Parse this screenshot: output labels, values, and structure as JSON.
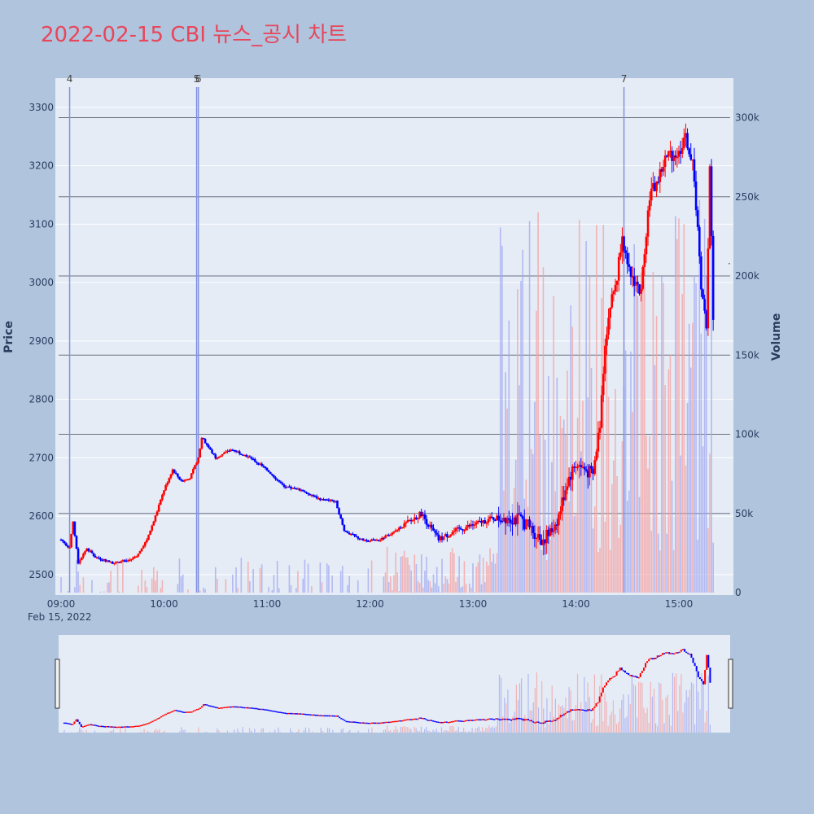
{
  "title": "2022-02-15 CBI 뉴스_공시 차트",
  "chart_data": {
    "type": "candlestick",
    "title": "2022-02-15 CBI 뉴스_공시 차트",
    "ylabel": "Price",
    "y2label": "Volume",
    "date_label": "Feb 15, 2022",
    "price_range": [
      2465,
      3350
    ],
    "volume_range": [
      0,
      325000
    ],
    "price_ticks": [
      2500,
      2600,
      2700,
      2800,
      2900,
      3000,
      3100,
      3200,
      3300
    ],
    "volume_ticks": [
      {
        "value": 0,
        "label": "0"
      },
      {
        "value": 50000,
        "label": "50k"
      },
      {
        "value": 100000,
        "label": "100k"
      },
      {
        "value": 150000,
        "label": "150k"
      },
      {
        "value": 200000,
        "label": "200k"
      },
      {
        "value": 250000,
        "label": "250k"
      },
      {
        "value": 300000,
        "label": "300k"
      }
    ],
    "time_ticks": [
      "09:00",
      "10:00",
      "11:00",
      "12:00",
      "13:00",
      "14:00",
      "15:00"
    ],
    "x_range": [
      "09:00",
      "15:30"
    ],
    "colors": {
      "up": "#ff0000",
      "down": "#0000ff",
      "annotation_line": "#8090e0",
      "hline": "#6b7080"
    },
    "news_markers": [
      {
        "label": "4",
        "time": "09:05"
      },
      {
        "label": "5",
        "time": "10:19"
      },
      {
        "label": "6",
        "time": "10:20"
      },
      {
        "label": "7",
        "time": "14:28"
      }
    ],
    "volume_gridlines": [
      50000,
      100000,
      150000,
      200000,
      250000,
      300000
    ],
    "price_keypoints": [
      [
        "09:00",
        2560
      ],
      [
        "09:05",
        2545
      ],
      [
        "09:07",
        2590
      ],
      [
        "09:10",
        2520
      ],
      [
        "09:15",
        2545
      ],
      [
        "09:20",
        2530
      ],
      [
        "09:30",
        2520
      ],
      [
        "09:40",
        2525
      ],
      [
        "09:45",
        2535
      ],
      [
        "09:50",
        2560
      ],
      [
        "09:55",
        2600
      ],
      [
        "10:00",
        2645
      ],
      [
        "10:05",
        2680
      ],
      [
        "10:10",
        2660
      ],
      [
        "10:15",
        2665
      ],
      [
        "10:20",
        2700
      ],
      [
        "10:22",
        2735
      ],
      [
        "10:30",
        2700
      ],
      [
        "10:40",
        2715
      ],
      [
        "10:50",
        2700
      ],
      [
        "11:00",
        2680
      ],
      [
        "11:10",
        2650
      ],
      [
        "11:20",
        2645
      ],
      [
        "11:30",
        2630
      ],
      [
        "11:40",
        2625
      ],
      [
        "11:45",
        2575
      ],
      [
        "11:55",
        2560
      ],
      [
        "12:05",
        2558
      ],
      [
        "12:15",
        2575
      ],
      [
        "12:25",
        2595
      ],
      [
        "12:30",
        2605
      ],
      [
        "12:33",
        2590
      ],
      [
        "12:40",
        2560
      ],
      [
        "12:50",
        2575
      ],
      [
        "13:00",
        2585
      ],
      [
        "13:10",
        2595
      ],
      [
        "13:20",
        2600
      ],
      [
        "13:30",
        2590
      ],
      [
        "13:35",
        2575
      ],
      [
        "13:40",
        2560
      ],
      [
        "13:45",
        2570
      ],
      [
        "13:50",
        2600
      ],
      [
        "13:55",
        2660
      ],
      [
        "14:00",
        2690
      ],
      [
        "14:05",
        2680
      ],
      [
        "14:10",
        2670
      ],
      [
        "14:14",
        2760
      ],
      [
        "14:17",
        2900
      ],
      [
        "14:20",
        2960
      ],
      [
        "14:24",
        3010
      ],
      [
        "14:27",
        3090
      ],
      [
        "14:30",
        3020
      ],
      [
        "14:35",
        3000
      ],
      [
        "14:38",
        2980
      ],
      [
        "14:40",
        3060
      ],
      [
        "14:43",
        3150
      ],
      [
        "14:47",
        3170
      ],
      [
        "14:52",
        3210
      ],
      [
        "14:55",
        3220
      ],
      [
        "15:00",
        3220
      ],
      [
        "15:03",
        3250
      ],
      [
        "15:05",
        3240
      ],
      [
        "15:08",
        3200
      ],
      [
        "15:11",
        3100
      ],
      [
        "15:13",
        2980
      ],
      [
        "15:16",
        2930
      ],
      [
        "15:18",
        3200
      ],
      [
        "15:20",
        2945
      ]
    ]
  }
}
